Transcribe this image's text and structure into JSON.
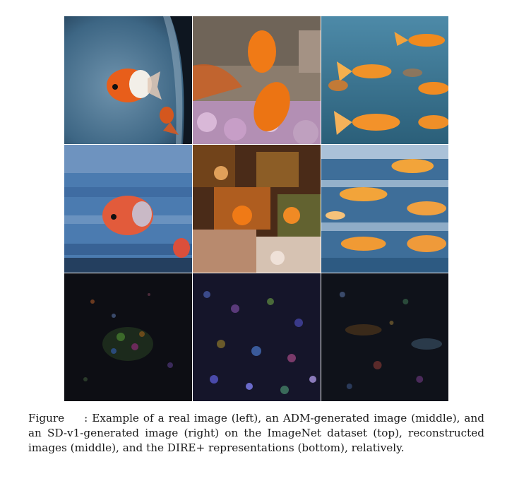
{
  "figure": {
    "caption_label": "Figure",
    "caption_number": "",
    "caption_text": ": Example of a real image (left), an ADM-generated image (middle), and an SD-v1-generated image (right) on the ImageNet dataset (top), reconstructed images (middle), and the DIRE+ representations (bottom), relatively."
  }
}
